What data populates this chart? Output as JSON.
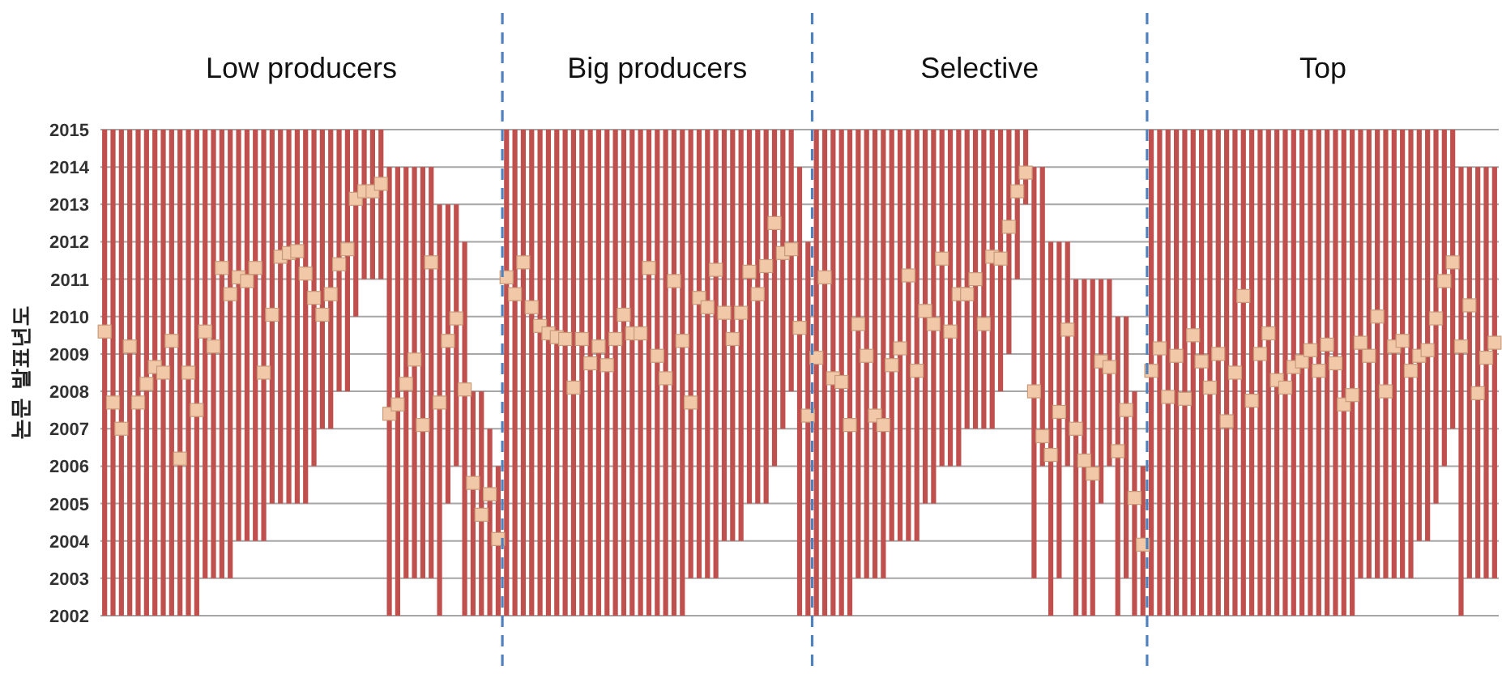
{
  "chart_data": {
    "type": "bar",
    "ylabel": "논문 발표년도",
    "annotations": [
      "Low producers",
      "Big producers",
      "Selective",
      "Top"
    ],
    "categories": [
      null,
      null,
      null,
      null,
      null,
      null,
      null,
      null,
      null,
      null,
      null,
      null,
      null,
      null,
      null,
      null,
      null,
      null,
      null,
      null,
      null,
      null,
      null,
      null,
      null,
      null,
      null,
      null,
      null,
      null,
      null,
      null,
      null,
      null,
      null,
      null,
      null,
      null,
      null,
      null,
      null,
      null,
      null,
      null,
      null,
      null,
      null,
      null,
      null,
      null,
      null,
      null,
      null,
      null,
      null,
      null,
      null,
      null,
      null,
      null,
      null,
      null,
      null,
      null,
      null,
      null,
      null,
      null,
      null,
      null,
      null,
      null,
      null,
      null,
      null,
      null,
      null,
      null,
      null,
      null,
      null,
      null,
      null,
      null,
      null,
      null,
      null,
      null,
      null,
      null,
      null,
      null,
      null,
      null,
      null,
      null,
      null,
      null,
      null,
      null,
      null,
      null,
      null,
      null,
      null,
      null,
      null,
      null,
      null,
      null,
      null,
      null,
      null,
      null,
      null,
      null,
      null,
      null,
      null,
      null,
      null,
      null,
      null,
      null,
      null,
      null,
      null,
      null,
      null,
      null,
      null,
      null,
      null,
      null,
      null,
      null,
      null,
      null,
      null,
      null,
      null,
      null,
      null,
      null,
      null,
      null,
      null,
      null,
      null,
      null,
      null,
      null,
      null,
      null,
      null,
      null,
      null,
      null,
      null,
      null,
      null,
      null,
      null,
      null,
      null,
      null,
      null
    ],
    "series": [
      {
        "color": "#c0504d",
        "base": [
          2002,
          2002,
          2002,
          2002,
          2002,
          2002,
          2002,
          2002,
          2002,
          2002,
          2002,
          2002,
          2003,
          2003,
          2003,
          2003,
          2004,
          2004,
          2004,
          2004,
          2005,
          2005,
          2005,
          2005,
          2005,
          2006,
          2007,
          2007,
          2008,
          2008,
          2010,
          2011,
          2011,
          2011,
          2002,
          2002,
          2003,
          2003,
          2003,
          2003,
          2002,
          2005,
          2006,
          2002,
          2002,
          2002,
          2002,
          2002,
          2002,
          2002,
          2002,
          2002,
          2002,
          2002,
          2002,
          2002,
          2002,
          2002,
          2002,
          2002,
          2002,
          2002,
          2002,
          2002,
          2002,
          2002,
          2002,
          2002,
          2002,
          2002,
          2003,
          2003,
          2003,
          2003,
          2004,
          2004,
          2004,
          2005,
          2005,
          2005,
          2006,
          2007,
          2008,
          2002,
          2002,
          2002,
          2002,
          2002,
          2002,
          2002,
          2003,
          2003,
          2003,
          2003,
          2004,
          2004,
          2004,
          2004,
          2005,
          2005,
          2006,
          2006,
          2006,
          2007,
          2007,
          2007,
          2007,
          2008,
          2009,
          2011,
          2013,
          2003,
          2006,
          2002,
          2003,
          2006,
          2002,
          2002,
          2002,
          2005,
          2006,
          2002,
          2003,
          2002,
          2002,
          2002,
          2002,
          2002,
          2002,
          2002,
          2002,
          2002,
          2002,
          2002,
          2002,
          2002,
          2002,
          2002,
          2002,
          2002,
          2002,
          2002,
          2002,
          2002,
          2002,
          2002,
          2002,
          2002,
          2002,
          2002,
          2003,
          2003,
          2003,
          2003,
          2003,
          2003,
          2003,
          2004,
          2004,
          2005,
          2006,
          2007,
          2002,
          2003,
          2003,
          2003,
          2003
        ],
        "values": [
          13,
          13,
          13,
          13,
          13,
          13,
          13,
          13,
          13,
          13,
          13,
          13,
          12,
          12,
          12,
          12,
          11,
          11,
          11,
          11,
          10,
          10,
          10,
          10,
          10,
          9,
          8,
          8,
          7,
          7,
          5,
          4,
          4,
          4,
          12,
          12,
          11,
          11,
          11,
          11,
          11,
          8,
          7,
          10,
          6,
          6,
          5,
          4,
          13,
          13,
          13,
          13,
          13,
          13,
          13,
          13,
          13,
          13,
          13,
          13,
          13,
          13,
          13,
          13,
          13,
          13,
          13,
          13,
          13,
          13,
          12,
          12,
          12,
          12,
          11,
          11,
          11,
          10,
          10,
          10,
          9,
          8,
          7,
          12,
          10,
          13,
          13,
          13,
          13,
          13,
          12,
          12,
          12,
          12,
          11,
          11,
          11,
          11,
          10,
          10,
          9,
          9,
          9,
          8,
          8,
          8,
          8,
          7,
          6,
          4,
          2,
          11,
          8,
          10,
          9,
          6,
          9,
          9,
          9,
          6,
          5,
          8,
          7,
          6,
          4,
          13,
          13,
          13,
          13,
          13,
          13,
          13,
          13,
          13,
          13,
          13,
          13,
          13,
          13,
          13,
          13,
          13,
          13,
          13,
          13,
          13,
          13,
          13,
          13,
          13,
          12,
          12,
          12,
          12,
          12,
          12,
          12,
          11,
          11,
          10,
          9,
          8,
          12,
          11,
          11,
          11,
          11
        ]
      },
      {
        "type": "scatter",
        "color": "#f2c9a8",
        "marker": "square",
        "values": [
          2009.6,
          2007.7,
          2007.0,
          2009.2,
          2007.7,
          2008.2,
          2008.65,
          2008.5,
          2009.35,
          2006.2,
          2008.5,
          2007.5,
          2009.6,
          2009.2,
          2011.3,
          2010.6,
          2011.05,
          2010.95,
          2011.3,
          2008.5,
          2010.05,
          2011.6,
          2011.7,
          2011.75,
          2011.15,
          2010.5,
          2010.05,
          2010.6,
          2011.4,
          2011.8,
          2013.15,
          2013.35,
          2013.35,
          2013.55,
          2007.4,
          2007.65,
          2008.2,
          2008.85,
          2007.1,
          2011.45,
          2007.7,
          2009.35,
          2009.95,
          2008.05,
          2005.55,
          2004.7,
          2005.25,
          2004.05,
          2011.05,
          2010.6,
          2011.45,
          2010.25,
          2009.75,
          2009.55,
          2009.45,
          2009.4,
          2008.1,
          2009.4,
          2008.75,
          2009.2,
          2008.7,
          2009.4,
          2010.05,
          2009.55,
          2009.55,
          2011.3,
          2008.95,
          2008.35,
          2010.95,
          2009.35,
          2007.7,
          2010.5,
          2010.25,
          2011.25,
          2010.1,
          2009.4,
          2010.1,
          2011.2,
          2010.6,
          2011.35,
          2012.5,
          2011.7,
          2011.8,
          2009.7,
          2007.35,
          2008.9,
          2011.05,
          2008.35,
          2008.25,
          2007.1,
          2009.8,
          2008.95,
          2007.35,
          2007.1,
          2008.7,
          2009.15,
          2011.1,
          2008.55,
          2010.15,
          2009.8,
          2011.55,
          2009.6,
          2010.6,
          2010.6,
          2011.0,
          2009.8,
          2011.6,
          2011.55,
          2012.4,
          2013.35,
          2013.85,
          2008.0,
          2006.8,
          2006.3,
          2007.45,
          2009.65,
          2007.0,
          2006.15,
          2005.8,
          2008.8,
          2008.65,
          2006.4,
          2007.5,
          2005.15,
          2003.9,
          2008.55,
          2009.15,
          2007.85,
          2008.95,
          2007.8,
          2009.5,
          2008.8,
          2008.1,
          2009.0,
          2007.2,
          2008.5,
          2010.55,
          2007.75,
          2009.0,
          2009.55,
          2008.3,
          2008.1,
          2008.65,
          2008.8,
          2009.1,
          2008.55,
          2009.25,
          2008.75,
          2007.65,
          2007.9,
          2009.3,
          2008.95,
          2010.0,
          2008.0,
          2009.2,
          2009.35,
          2008.55,
          2008.95,
          2009.1,
          2009.95,
          2010.95,
          2011.45,
          2009.2,
          2010.3,
          2007.95,
          2008.9,
          2009.3
        ]
      }
    ],
    "ylim": [
      2002,
      2015
    ],
    "yticks": [
      2002,
      2003,
      2004,
      2005,
      2006,
      2007,
      2008,
      2009,
      2010,
      2011,
      2012,
      2013,
      2014,
      2015
    ],
    "grid": "y"
  }
}
